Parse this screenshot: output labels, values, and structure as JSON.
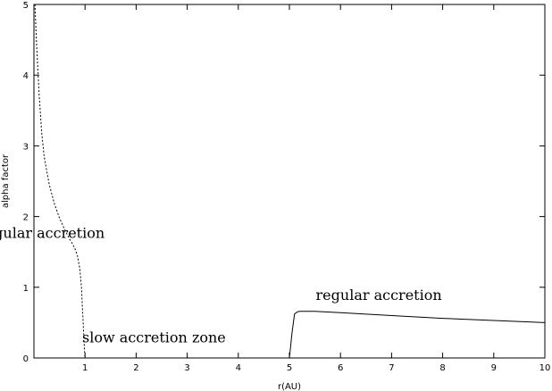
{
  "chart_data": {
    "type": "line",
    "title": "",
    "xlabel": "r(AU)",
    "ylabel": "alpha factor",
    "xlim": [
      0,
      10
    ],
    "ylim": [
      0,
      5
    ],
    "xticks": [
      1,
      2,
      3,
      4,
      5,
      6,
      7,
      8,
      9,
      10
    ],
    "yticks": [
      0,
      1,
      2,
      3,
      4,
      5
    ],
    "grid": false,
    "series": [
      {
        "style": "dashed",
        "x": [
          0.02,
          0.05,
          0.1,
          0.15,
          0.2,
          0.3,
          0.4,
          0.5,
          0.6,
          0.7,
          0.75,
          0.8,
          0.85,
          0.9,
          0.93,
          0.95,
          0.97,
          0.99,
          1.0
        ],
        "y": [
          5.0,
          4.45,
          3.75,
          3.2,
          2.85,
          2.45,
          2.18,
          1.98,
          1.82,
          1.68,
          1.62,
          1.55,
          1.45,
          1.25,
          1.0,
          0.7,
          0.4,
          0.1,
          0.0
        ]
      },
      {
        "style": "solid",
        "x": [
          5.0,
          5.05,
          5.1,
          5.15,
          5.2,
          5.3,
          5.5,
          6,
          7,
          8,
          9,
          10
        ],
        "y": [
          0.0,
          0.35,
          0.62,
          0.65,
          0.66,
          0.66,
          0.66,
          0.64,
          0.6,
          0.56,
          0.53,
          0.5
        ]
      }
    ],
    "annotations": [
      {
        "text": "regular accretion",
        "x": 0.15,
        "y": 1.7
      },
      {
        "text": "regular accretion",
        "x": 6.75,
        "y": 0.82
      },
      {
        "text": "slow accretion zone",
        "x": 2.35,
        "y": 0.22
      }
    ]
  }
}
